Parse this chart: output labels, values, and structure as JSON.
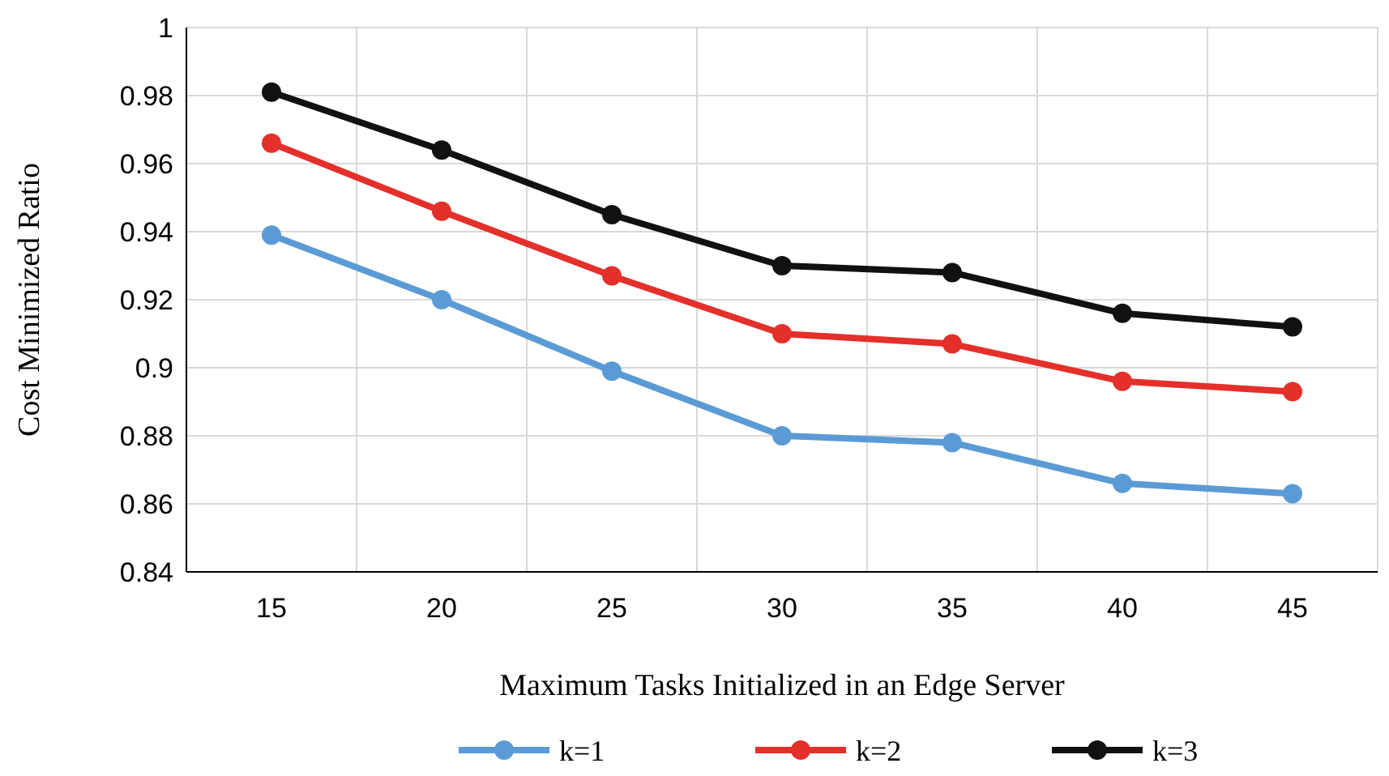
{
  "chart_data": {
    "type": "line",
    "xlabel": "Maximum Tasks Initialized in an Edge Server",
    "ylabel": "Cost Minimized Ratio",
    "categories": [
      "15",
      "20",
      "25",
      "30",
      "35",
      "40",
      "45"
    ],
    "series": [
      {
        "name": "k=1",
        "color": "#5b9bd5",
        "values": [
          0.939,
          0.92,
          0.899,
          0.88,
          0.878,
          0.866,
          0.863
        ]
      },
      {
        "name": "k=2",
        "color": "#e3302a",
        "values": [
          0.966,
          0.946,
          0.927,
          0.91,
          0.907,
          0.896,
          0.893
        ]
      },
      {
        "name": "k=3",
        "color": "#111111",
        "values": [
          0.981,
          0.964,
          0.945,
          0.93,
          0.928,
          0.916,
          0.912
        ]
      }
    ],
    "ylim": [
      0.84,
      1
    ],
    "yticks": [
      0.84,
      0.86,
      0.88,
      0.9,
      0.92,
      0.94,
      0.96,
      0.98,
      1
    ],
    "grid": true,
    "legend": "bottom",
    "marker": "circle",
    "line_style": "solid"
  }
}
